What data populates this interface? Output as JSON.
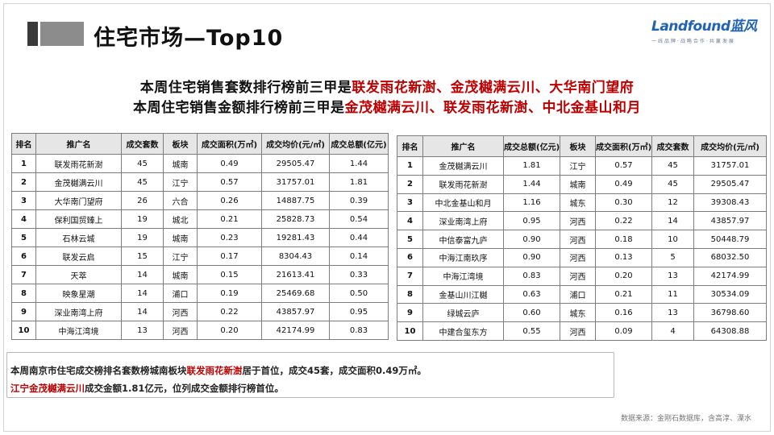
{
  "title": "住宅市场—Top10",
  "logo": {
    "main": "Landfound蓝风",
    "sub": "一线品牌·战略合作·共赢发展"
  },
  "headline1": {
    "prefix": "本周住宅销售套数排行榜前三甲是",
    "highlight": "联发雨花新澍、金茂樾满云川、大华南门望府"
  },
  "headline2": {
    "prefix": "本周住宅销售金额排行榜前三甲是",
    "highlight": "金茂樾满云川、联发雨花新澍、中北金基山和月"
  },
  "table_count": {
    "headers": [
      "排名",
      "推广名",
      "成交套数",
      "板块",
      "成交面积(万㎡)",
      "成交均价(元/㎡)",
      "成交总额(亿元)"
    ],
    "rows": [
      [
        "1",
        "联发雨花新澍",
        "45",
        "城南",
        "0.49",
        "29505.47",
        "1.44"
      ],
      [
        "2",
        "金茂樾满云川",
        "45",
        "江宁",
        "0.57",
        "31757.01",
        "1.81"
      ],
      [
        "3",
        "大华南门望府",
        "26",
        "六合",
        "0.26",
        "14887.75",
        "0.39"
      ],
      [
        "4",
        "保利国贸臻上",
        "19",
        "城北",
        "0.21",
        "25828.73",
        "0.54"
      ],
      [
        "5",
        "石林云城",
        "19",
        "城南",
        "0.23",
        "19281.43",
        "0.44"
      ],
      [
        "6",
        "联发云启",
        "15",
        "江宁",
        "0.17",
        "8304.43",
        "0.14"
      ],
      [
        "7",
        "天萃",
        "14",
        "城南",
        "0.15",
        "21613.41",
        "0.33"
      ],
      [
        "8",
        "映象星潮",
        "14",
        "浦口",
        "0.19",
        "25469.68",
        "0.50"
      ],
      [
        "9",
        "深业南湾上府",
        "14",
        "河西",
        "0.22",
        "43857.97",
        "0.95"
      ],
      [
        "10",
        "中海江湾境",
        "13",
        "河西",
        "0.20",
        "42174.99",
        "0.83"
      ]
    ]
  },
  "table_amount": {
    "headers": [
      "排名",
      "推广名",
      "成交总额(亿元)",
      "板块",
      "成交面积(万㎡)",
      "成交套数",
      "成交均价(元/㎡)"
    ],
    "rows": [
      [
        "1",
        "金茂樾满云川",
        "1.81",
        "江宁",
        "0.57",
        "45",
        "31757.01"
      ],
      [
        "2",
        "联发雨花新澍",
        "1.44",
        "城南",
        "0.49",
        "45",
        "29505.47"
      ],
      [
        "3",
        "中北金基山和月",
        "1.16",
        "城东",
        "0.30",
        "12",
        "39308.43"
      ],
      [
        "4",
        "深业南湾上府",
        "0.95",
        "河西",
        "0.22",
        "14",
        "43857.97"
      ],
      [
        "5",
        "中信泰富九庐",
        "0.90",
        "河西",
        "0.18",
        "10",
        "50448.79"
      ],
      [
        "6",
        "中海江南玖序",
        "0.90",
        "河西",
        "0.13",
        "5",
        "68032.50"
      ],
      [
        "7",
        "中海江湾境",
        "0.83",
        "河西",
        "0.20",
        "13",
        "42174.99"
      ],
      [
        "8",
        "金基山川江樾",
        "0.63",
        "浦口",
        "0.21",
        "11",
        "30534.09"
      ],
      [
        "9",
        "绿城云庐",
        "0.60",
        "城东",
        "0.16",
        "13",
        "36798.60"
      ],
      [
        "10",
        "中建合玺东方",
        "0.55",
        "河西",
        "0.09",
        "4",
        "64308.88"
      ]
    ]
  },
  "summary": {
    "line1_prefix": "本周南京市住宅成交榜排名套数榜城南板块",
    "line1_highlight": "联发雨花新澍",
    "line1_suffix": "居于首位，成交45套，成交面积0.49万㎡。",
    "line2_highlight": "江宁金茂樾满云川",
    "line2_suffix": "成交金额1.81亿元，位列成交金额排行榜首位。"
  },
  "source": "数据来源：金刚石数据库，含高淳、溧水",
  "colors": {
    "highlight": "#c00000",
    "logo_blue": "#1f62b8",
    "header_bg": "#e6e6e6"
  }
}
